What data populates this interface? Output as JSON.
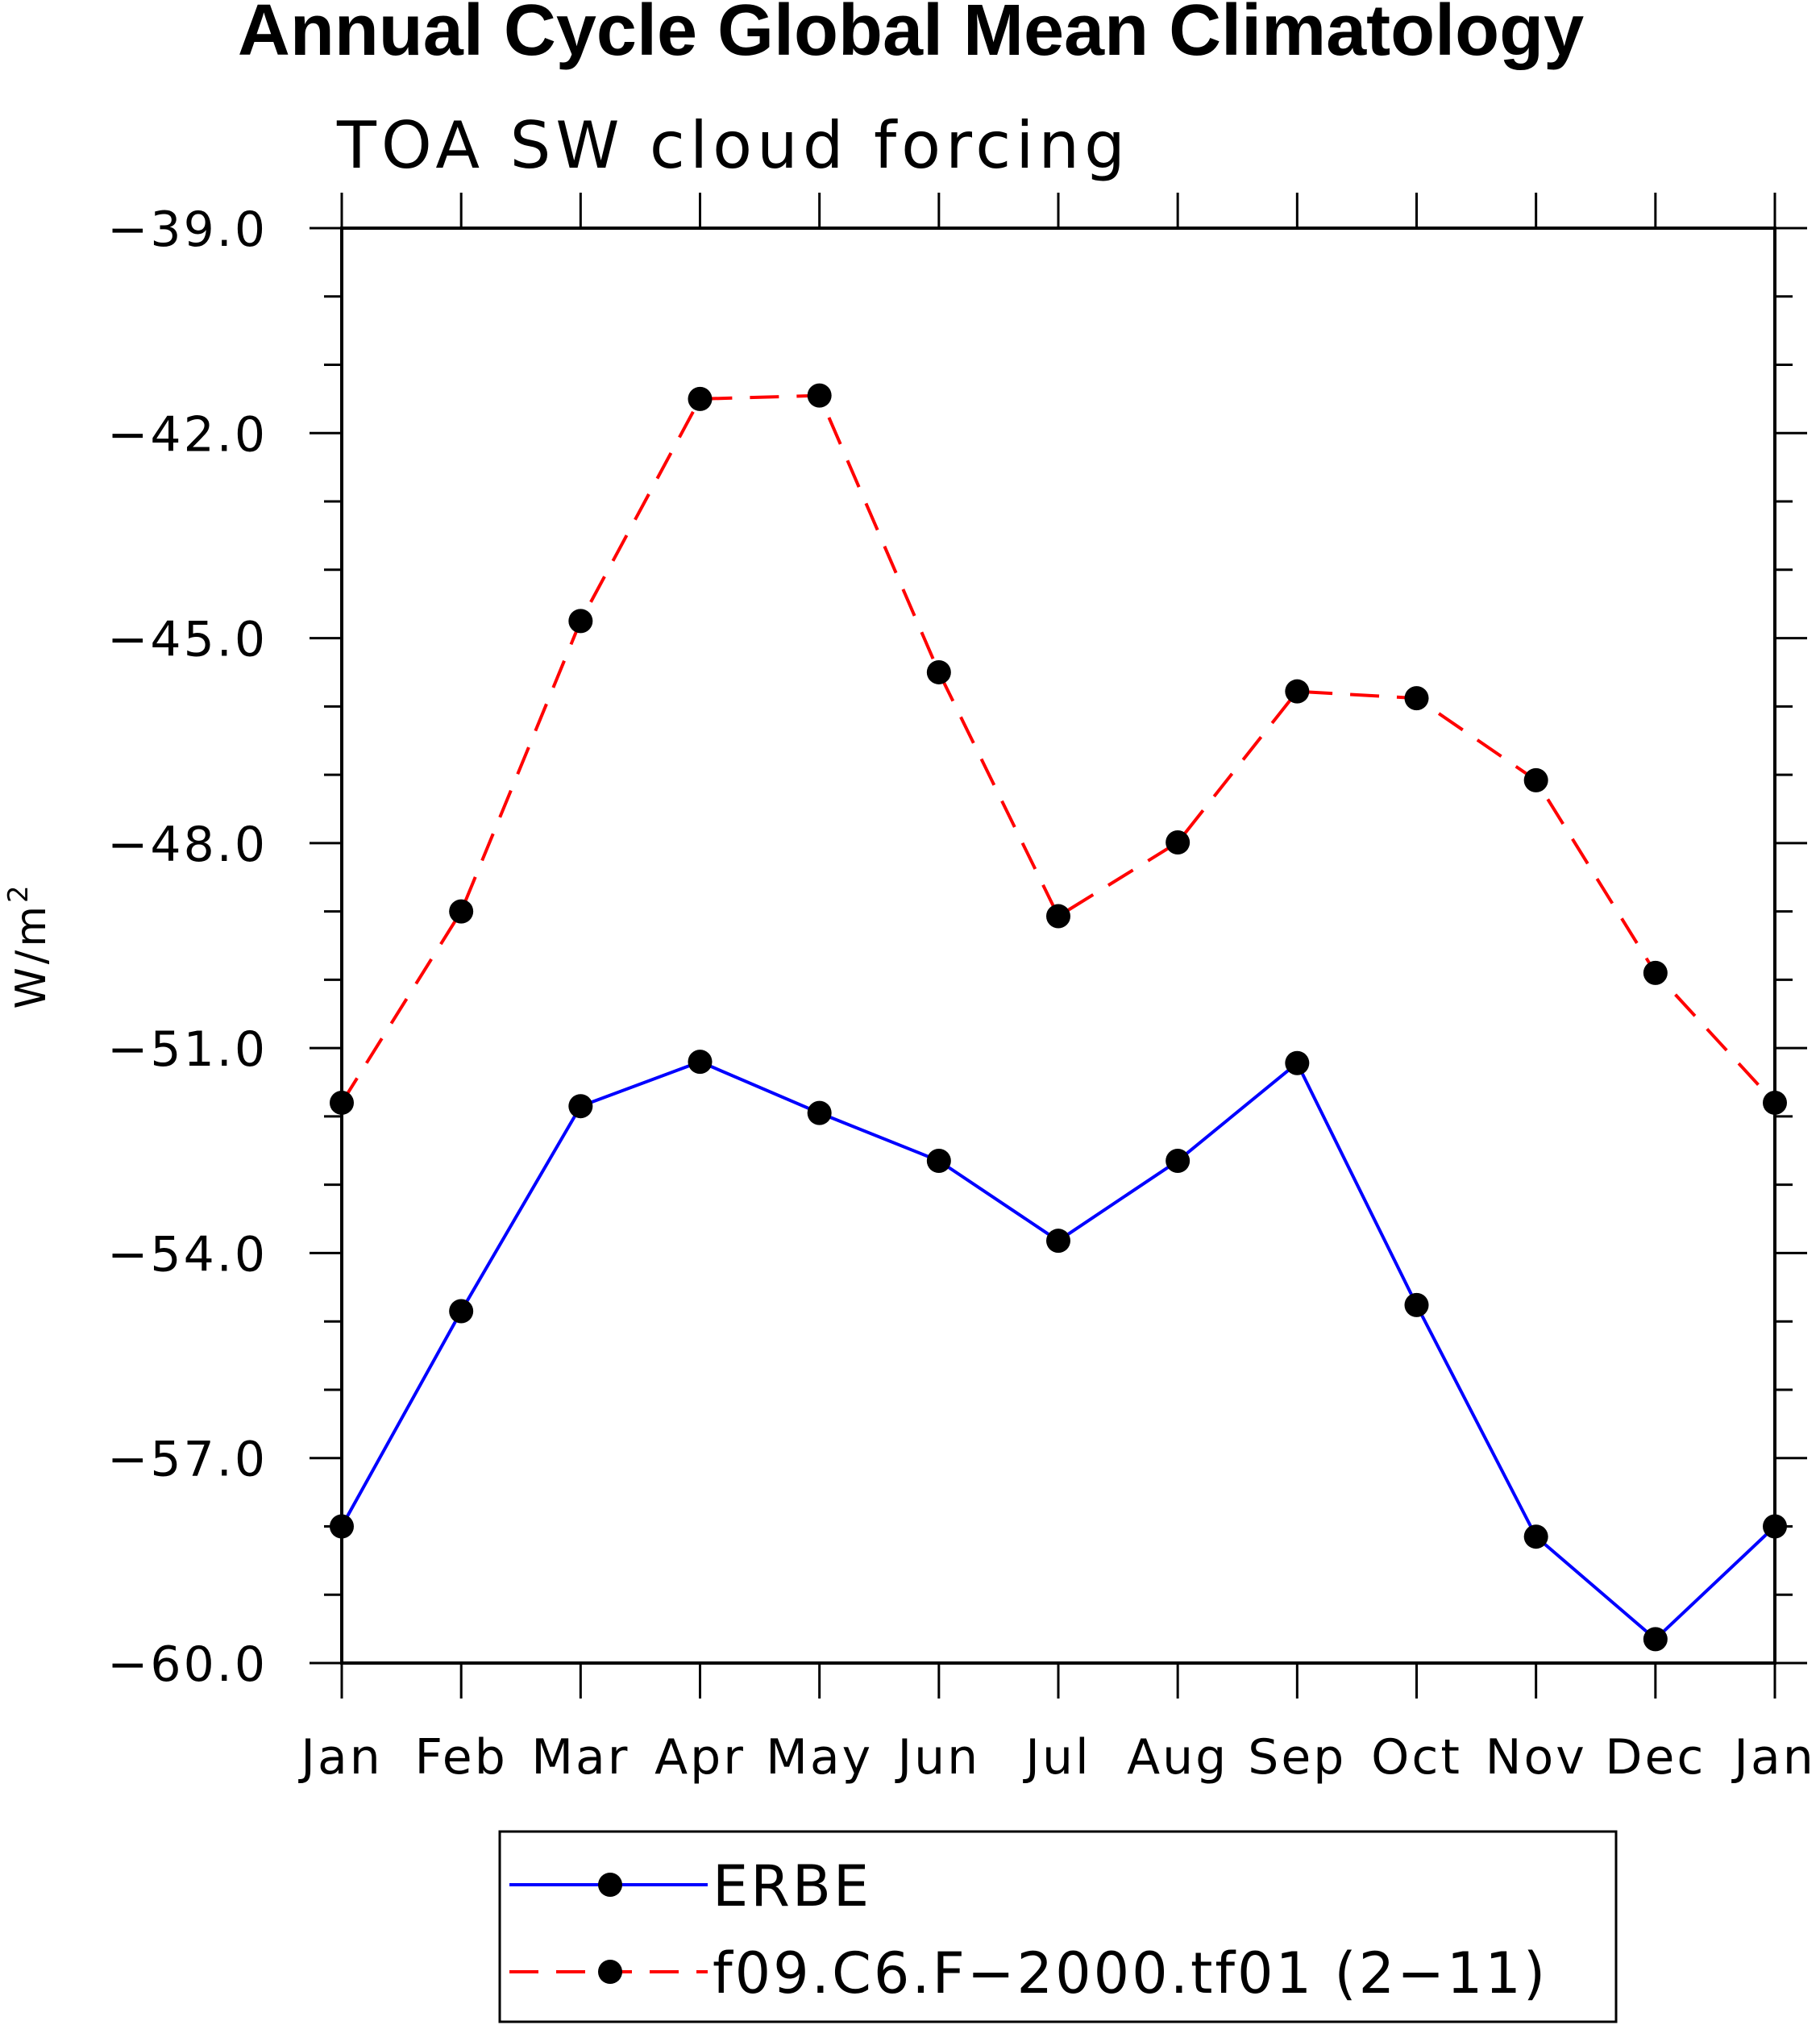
{
  "chart_data": {
    "type": "line",
    "title": "Annual Cycle Global Mean Climatology",
    "subtitle": "TOA SW cloud forcing",
    "xlabel": "",
    "ylabel_base": "W/m",
    "ylabel_sup": "2",
    "categories": [
      "Jan",
      "Feb",
      "Mar",
      "Apr",
      "May",
      "Jun",
      "Jul",
      "Aug",
      "Sep",
      "Oct",
      "Nov",
      "Dec",
      "Jan"
    ],
    "ylim": [
      -60.0,
      -39.0
    ],
    "yticks": [
      "-39.0",
      "-42.0",
      "-45.0",
      "-48.0",
      "-51.0",
      "-54.0",
      "-57.0",
      "-60.0"
    ],
    "ytick_values": [
      -39,
      -42,
      -45,
      -48,
      -51,
      -54,
      -57,
      -60
    ],
    "grid": false,
    "legend_position": "bottom",
    "series": [
      {
        "name": "ERBE",
        "color": "#0000ff",
        "dashed": false,
        "values": [
          -58.0,
          -54.85,
          -51.85,
          -51.2,
          -51.95,
          -52.65,
          -53.82,
          -52.65,
          -51.22,
          -54.76,
          -58.15,
          -59.65,
          -58.0
        ]
      },
      {
        "name": "f09.C6.F-2000.tf01 (2-11)",
        "color": "#ff0000",
        "dashed": true,
        "values": [
          -51.8,
          -49.0,
          -44.75,
          -41.5,
          -41.45,
          -45.5,
          -49.07,
          -47.99,
          -45.78,
          -45.88,
          -47.08,
          -49.9,
          -51.8
        ]
      }
    ]
  }
}
